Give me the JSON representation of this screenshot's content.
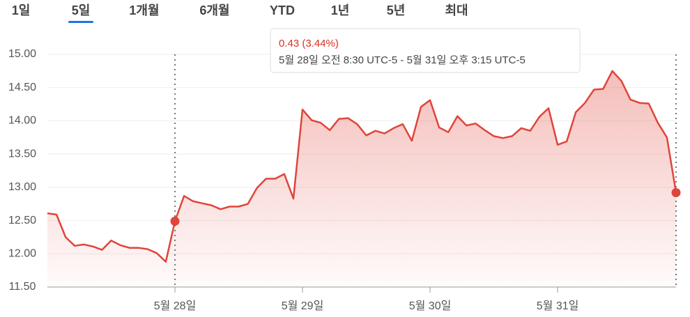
{
  "tabs": [
    "1일",
    "5일",
    "1개월",
    "6개월",
    "YTD",
    "1년",
    "5년",
    "최대"
  ],
  "active_tab": 1,
  "tooltip": {
    "change": "0.43 (3.44%)",
    "range": "5월 28일 오전 8:30 UTC-5 - 5월 31일 오후 3:15 UTC-5"
  },
  "chart_data": {
    "type": "line",
    "values": [
      12.61,
      12.59,
      12.25,
      12.12,
      12.14,
      12.11,
      12.06,
      12.2,
      12.13,
      12.09,
      12.09,
      12.07,
      12.01,
      11.88,
      12.49,
      12.87,
      12.79,
      12.76,
      12.73,
      12.67,
      12.71,
      12.71,
      12.75,
      12.99,
      13.13,
      13.13,
      13.2,
      12.83,
      14.17,
      14.01,
      13.97,
      13.86,
      14.03,
      14.04,
      13.95,
      13.78,
      13.85,
      13.81,
      13.89,
      13.95,
      13.7,
      14.21,
      14.31,
      13.9,
      13.83,
      14.07,
      13.93,
      13.96,
      13.86,
      13.77,
      13.74,
      13.77,
      13.89,
      13.85,
      14.06,
      14.19,
      13.64,
      13.69,
      14.13,
      14.27,
      14.47,
      14.48,
      14.75,
      14.6,
      14.32,
      14.27,
      14.26,
      13.97,
      13.75,
      12.92
    ],
    "color": "#e0443a",
    "xlim": [
      0,
      69
    ],
    "xticks": [
      {
        "value": 14,
        "label": "5월 28일"
      },
      {
        "value": 28,
        "label": "5월 29일"
      },
      {
        "value": 42,
        "label": "5월 30일"
      },
      {
        "value": 56,
        "label": "5월 31일"
      }
    ],
    "ylim": [
      11.5,
      15
    ],
    "yticks": [
      {
        "value": 11.5,
        "label": "11.50"
      },
      {
        "value": 12,
        "label": "12.00"
      },
      {
        "value": 12.5,
        "label": "12.50"
      },
      {
        "value": 13,
        "label": "13.00"
      },
      {
        "value": 13.5,
        "label": "13.50"
      },
      {
        "value": 14,
        "label": "14.00"
      },
      {
        "value": 14.5,
        "label": "14.50"
      },
      {
        "value": 15,
        "label": "15.00"
      }
    ],
    "grid": true,
    "selection": [
      14,
      69
    ]
  }
}
